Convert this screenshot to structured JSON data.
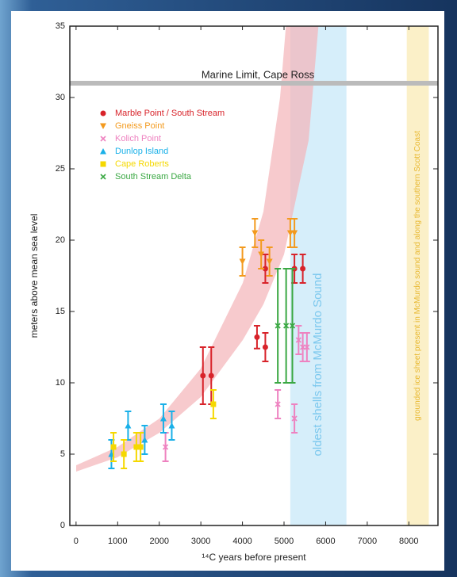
{
  "chart_data": {
    "type": "scatter",
    "xlabel": "¹⁴C years before present",
    "ylabel": "meters above mean sea level",
    "xlim": [
      -150,
      8700
    ],
    "ylim": [
      0,
      35
    ],
    "xticks": [
      0,
      1000,
      2000,
      3000,
      4000,
      5000,
      6000,
      7000,
      8000
    ],
    "yticks": [
      0,
      5,
      10,
      15,
      20,
      25,
      30,
      35
    ],
    "reference_line": {
      "value": 31,
      "label": "Marine Limit, Cape Ross",
      "color": "#bbbbbb"
    },
    "bands": [
      {
        "range": [
          5150,
          6500
        ],
        "color": "#d6eefa",
        "label": "oldest shells from McMurdo Sound",
        "label_color": "#7cc8ee"
      },
      {
        "range": [
          7950,
          8480
        ],
        "color": "#fbf0c8",
        "label": "grounded ice sheet present in McMurdo sound and along the southern Scott Coast",
        "label_color": "#e8b830"
      }
    ],
    "series": [
      {
        "name": "Marble Point / South Stream",
        "color": "#d8232a",
        "marker": "circle",
        "x": [
          3050,
          3250,
          4350,
          4550,
          4550,
          5250,
          5450
        ],
        "values": [
          10.5,
          10.5,
          13.2,
          12.5,
          18,
          18,
          18
        ],
        "errors": [
          2,
          2,
          0.8,
          1,
          1,
          1,
          1
        ]
      },
      {
        "name": "Gneiss Point",
        "color": "#f39a1e",
        "marker": "tri-down",
        "x": [
          4000,
          4300,
          4450,
          4650,
          5150,
          5250
        ],
        "values": [
          18.5,
          20.5,
          19,
          18.5,
          20.5,
          20.5
        ],
        "errors": [
          1,
          1,
          1,
          1,
          1,
          1
        ]
      },
      {
        "name": "Kolich Point",
        "color": "#ee82c0",
        "marker": "x",
        "x": [
          2150,
          4850,
          5250,
          5350,
          5450,
          5550
        ],
        "values": [
          5.5,
          8.5,
          7.5,
          13,
          12.5,
          12.5
        ],
        "errors": [
          1,
          1,
          1,
          1,
          1,
          1
        ]
      },
      {
        "name": "Dunlop Island",
        "color": "#1ab0e8",
        "marker": "tri-up",
        "x": [
          850,
          1250,
          1650,
          2100,
          2300
        ],
        "values": [
          5,
          7,
          6,
          7.5,
          7
        ],
        "errors": [
          1,
          1,
          1,
          1,
          1
        ]
      },
      {
        "name": "Cape Roberts",
        "color": "#f5d800",
        "marker": "square",
        "x": [
          900,
          1150,
          1450,
          1550,
          3300
        ],
        "values": [
          5.5,
          5,
          5.5,
          5.5,
          8.5
        ],
        "errors": [
          1,
          1,
          1,
          1,
          1
        ]
      },
      {
        "name": "South Stream Delta",
        "color": "#3aa843",
        "marker": "x",
        "x": [
          4850,
          5050,
          5200
        ],
        "values": [
          14,
          14,
          14
        ],
        "errors": [
          4,
          4,
          4
        ]
      }
    ]
  }
}
